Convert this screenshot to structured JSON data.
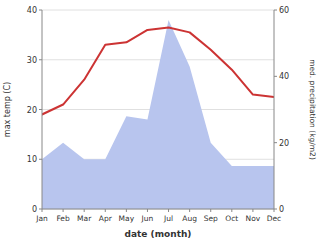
{
  "chart_data": {
    "type": "line",
    "xlabel": "date (month)",
    "ylabel": "max temp (C)",
    "y2label": "med. precipitation (kg/m2)",
    "categories": [
      "Jan",
      "Feb",
      "Mar",
      "Apr",
      "May",
      "Jun",
      "Jul",
      "Aug",
      "Sep",
      "Oct",
      "Nov",
      "Dec"
    ],
    "series": [
      {
        "type": "area",
        "axis": "y2",
        "color": "#b8c5ee",
        "values": [
          15,
          20,
          15,
          15,
          28,
          27,
          57,
          43,
          20,
          13,
          13,
          13
        ]
      },
      {
        "type": "line",
        "color": "#cc3333",
        "values": [
          19,
          21,
          26,
          33,
          33.5,
          36,
          36.5,
          35.5,
          32,
          28,
          23,
          22.5
        ]
      }
    ],
    "ylim": [
      0,
      40
    ],
    "yticks": [
      0,
      10,
      20,
      30,
      40
    ],
    "y2lim": [
      0,
      60
    ],
    "y2ticks": [
      0,
      20,
      40,
      60
    ],
    "grid": true
  }
}
